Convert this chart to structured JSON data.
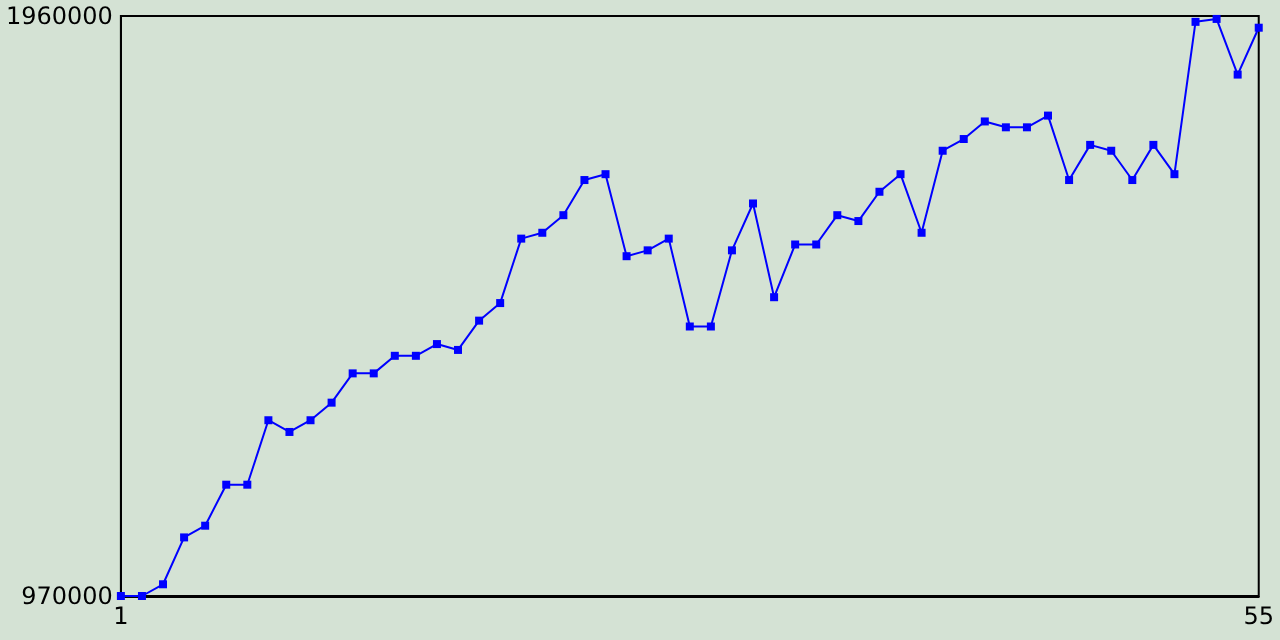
{
  "chart_data": {
    "type": "line",
    "x": [
      1,
      2,
      3,
      4,
      5,
      6,
      7,
      8,
      9,
      10,
      11,
      12,
      13,
      14,
      15,
      16,
      17,
      18,
      19,
      20,
      21,
      22,
      23,
      24,
      25,
      26,
      27,
      28,
      29,
      30,
      31,
      32,
      33,
      34,
      35,
      36,
      37,
      38,
      39,
      40,
      41,
      42,
      43,
      44,
      45,
      46,
      47,
      48,
      49,
      50,
      51,
      52,
      53,
      54,
      55
    ],
    "series": [
      {
        "color": "#0000ff",
        "values": [
          970000,
          970000,
          990000,
          1070000,
          1090000,
          1160000,
          1160000,
          1270000,
          1250000,
          1270000,
          1300000,
          1350000,
          1350000,
          1380000,
          1380000,
          1400000,
          1390000,
          1440000,
          1470000,
          1580000,
          1590000,
          1620000,
          1680000,
          1690000,
          1550000,
          1560000,
          1580000,
          1430000,
          1430000,
          1560000,
          1640000,
          1480000,
          1570000,
          1570000,
          1620000,
          1610000,
          1660000,
          1690000,
          1590000,
          1730000,
          1750000,
          1780000,
          1770000,
          1770000,
          1790000,
          1680000,
          1740000,
          1730000,
          1680000,
          1740000,
          1690000,
          1950000,
          1955000,
          1860000,
          1940000
        ]
      }
    ],
    "xlim": [
      1,
      55
    ],
    "xticks": [
      1,
      55
    ],
    "ylim": [
      970000,
      1960000
    ],
    "yticks": [
      970000,
      1960000
    ],
    "grid": false,
    "marker": "square",
    "line_style": "solid"
  }
}
